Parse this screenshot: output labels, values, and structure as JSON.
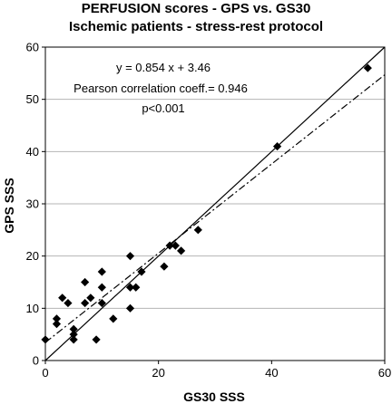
{
  "chart_data": {
    "type": "scatter",
    "title": "PERFUSION scores  -  GPS  vs.  GS30",
    "subtitle": "Ischemic patients  -  stress-rest protocol",
    "xlabel": "GS30  SSS",
    "ylabel": "GPS  SSS",
    "xlim": [
      0,
      60
    ],
    "ylim": [
      0,
      60
    ],
    "xticks": [
      "0",
      "20",
      "40",
      "60"
    ],
    "yticks": [
      "0",
      "10",
      "20",
      "30",
      "40",
      "50",
      "60"
    ],
    "grid": "horizontal",
    "annotations": [
      "y = 0.854 x + 3.46",
      "Pearson correlation coeff.= 0.946",
      "p<0.001"
    ],
    "identity_line": {
      "from": [
        0,
        0
      ],
      "to": [
        60,
        60
      ]
    },
    "regression_line": {
      "slope": 0.854,
      "intercept": 3.46
    },
    "points": [
      [
        0,
        4
      ],
      [
        2,
        7
      ],
      [
        2,
        8
      ],
      [
        3,
        12
      ],
      [
        4,
        11
      ],
      [
        5,
        4
      ],
      [
        5,
        5
      ],
      [
        5,
        6
      ],
      [
        7,
        11
      ],
      [
        7,
        15
      ],
      [
        8,
        12
      ],
      [
        9,
        4
      ],
      [
        10,
        11
      ],
      [
        10,
        14
      ],
      [
        10,
        17
      ],
      [
        12,
        8
      ],
      [
        15,
        10
      ],
      [
        15,
        14
      ],
      [
        15,
        20
      ],
      [
        16,
        14
      ],
      [
        17,
        17
      ],
      [
        21,
        18
      ],
      [
        22,
        22
      ],
      [
        23,
        22
      ],
      [
        24,
        21
      ],
      [
        27,
        25
      ],
      [
        41,
        41
      ],
      [
        57,
        56
      ]
    ]
  }
}
